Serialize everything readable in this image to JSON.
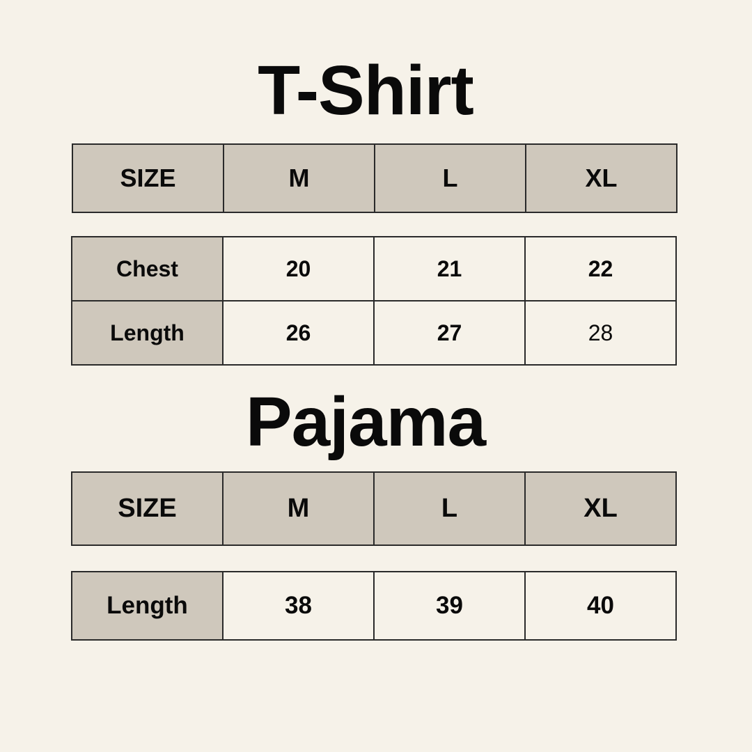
{
  "tshirt": {
    "title": "T-Shirt",
    "header": [
      "SIZE",
      "M",
      "L",
      "XL"
    ],
    "rows": [
      {
        "label": "Chest",
        "values": [
          "20",
          "21",
          "22"
        ]
      },
      {
        "label": "Length",
        "values": [
          "26",
          "27",
          "28"
        ]
      }
    ]
  },
  "pajama": {
    "title": "Pajama",
    "header": [
      "SIZE",
      "M",
      "L",
      "XL"
    ],
    "rows": [
      {
        "label": "Length",
        "values": [
          "38",
          "39",
          "40"
        ]
      }
    ]
  },
  "colors": {
    "background": "#f6f2e9",
    "header_fill": "#cfc8bc",
    "border": "#2a2a2a"
  }
}
